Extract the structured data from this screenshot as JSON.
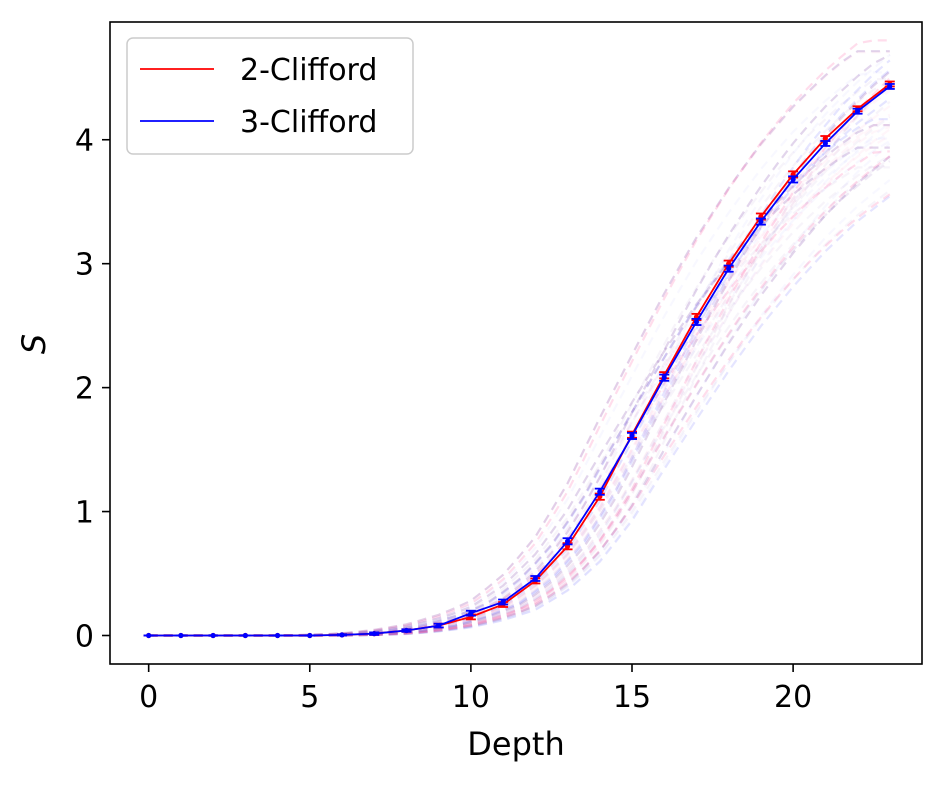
{
  "chart_data": {
    "type": "line",
    "xlabel": "Depth",
    "ylabel": "S",
    "xlim": [
      -1.2,
      24.0
    ],
    "ylim": [
      -0.23,
      4.95
    ],
    "xticks": [
      0,
      5,
      10,
      15,
      20
    ],
    "yticks": [
      0,
      1,
      2,
      3,
      4
    ],
    "grid": false,
    "legend_position": "top-left",
    "x": [
      0,
      1,
      2,
      3,
      4,
      5,
      6,
      7,
      8,
      9,
      10,
      11,
      12,
      13,
      14,
      15,
      16,
      17,
      18,
      19,
      20,
      21,
      22,
      23
    ],
    "series": [
      {
        "name": "2-Clifford",
        "color": "#ff0000",
        "values": [
          0,
          0,
          0,
          0,
          0,
          0,
          0.005,
          0.015,
          0.04,
          0.08,
          0.15,
          0.25,
          0.44,
          0.72,
          1.12,
          1.62,
          2.1,
          2.57,
          3.0,
          3.38,
          3.72,
          4.01,
          4.25,
          4.45
        ],
        "errors": [
          0,
          0,
          0,
          0,
          0,
          0,
          0.005,
          0.01,
          0.01,
          0.015,
          0.02,
          0.02,
          0.02,
          0.025,
          0.025,
          0.025,
          0.025,
          0.025,
          0.025,
          0.025,
          0.025,
          0.02,
          0.02,
          0.02
        ]
      },
      {
        "name": "3-Clifford",
        "color": "#0000ff",
        "values": [
          0,
          0,
          0,
          0,
          0,
          0,
          0.005,
          0.015,
          0.04,
          0.08,
          0.18,
          0.27,
          0.46,
          0.76,
          1.16,
          1.61,
          2.08,
          2.53,
          2.96,
          3.34,
          3.68,
          3.97,
          4.23,
          4.43
        ],
        "errors": [
          0,
          0,
          0,
          0,
          0,
          0,
          0.005,
          0.01,
          0.01,
          0.015,
          0.02,
          0.02,
          0.02,
          0.025,
          0.025,
          0.025,
          0.025,
          0.025,
          0.025,
          0.025,
          0.025,
          0.02,
          0.02,
          0.02
        ]
      }
    ],
    "background_traces_color": "#7a3fa8"
  }
}
